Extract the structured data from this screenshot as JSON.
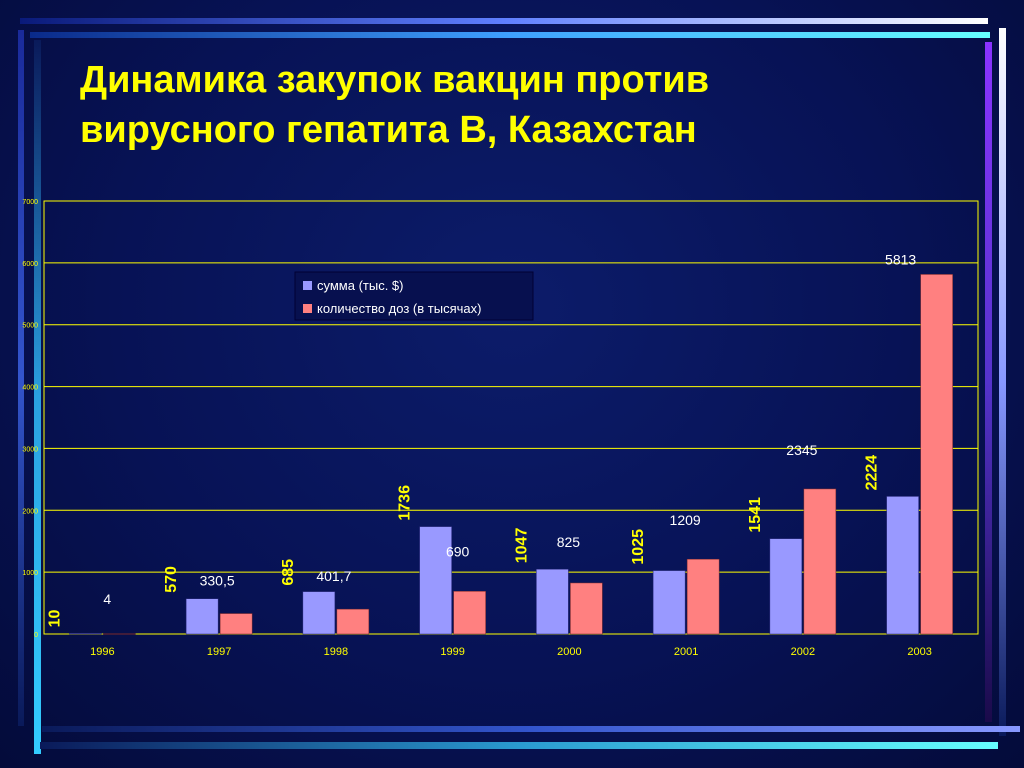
{
  "slide": {
    "title_line1": "Динамика закупок вакцин против",
    "title_line2": "вирусного гепатита В, Казахстан"
  },
  "colors": {
    "background": "#071255",
    "title": "#ffff00",
    "series_sum": "#9999ff",
    "series_doses": "#ff8080",
    "axis": "#ffff00"
  },
  "chart_data": {
    "type": "bar",
    "categories": [
      "1996",
      "1997",
      "1998",
      "1999",
      "2000",
      "2001",
      "2002",
      "2003"
    ],
    "series": [
      {
        "name": "сумма  (тыс. $)",
        "values": [
          10,
          570,
          685,
          1736,
          1047,
          1025,
          1541,
          2224
        ],
        "labels": [
          "10",
          "570",
          "685",
          "1736",
          "1047",
          "1025",
          "1541",
          "2224"
        ]
      },
      {
        "name": "количество доз (в тысячах)",
        "values": [
          4,
          330.5,
          401.7,
          690,
          825,
          1209,
          2345,
          5813
        ],
        "labels": [
          "4",
          "330,5",
          "401,7",
          "690",
          "825",
          "1209",
          "2345",
          "5813"
        ]
      }
    ],
    "ylim": [
      0,
      7000
    ],
    "yticks": [
      0,
      1000,
      2000,
      3000,
      4000,
      5000,
      6000,
      7000
    ],
    "grid": true,
    "legend_position": "top-center"
  }
}
